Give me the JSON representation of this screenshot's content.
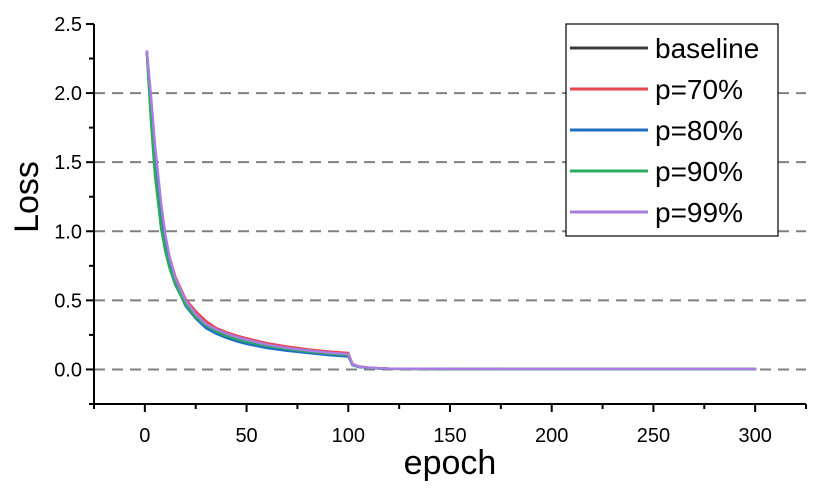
{
  "chart_data": {
    "type": "line",
    "title": "",
    "xlabel": "epoch",
    "ylabel": "Loss",
    "xlim": [
      -25,
      325
    ],
    "ylim": [
      -0.25,
      2.5
    ],
    "xticks": [
      0,
      50,
      100,
      150,
      200,
      250,
      300
    ],
    "yticks": [
      0.0,
      0.5,
      1.0,
      1.5,
      2.0,
      2.5
    ],
    "ytick_labels": [
      "0.0",
      "0.5",
      "1.0",
      "1.5",
      "2.0",
      "2.5"
    ],
    "grid": "horizontal-dashed",
    "legend_position": "top-right",
    "series": [
      {
        "name": "baseline",
        "color": "#3c3c3c",
        "x": [
          1,
          3,
          5,
          8,
          10,
          12,
          15,
          20,
          25,
          30,
          35,
          40,
          45,
          50,
          60,
          70,
          80,
          90,
          99,
          100,
          101,
          102,
          105,
          110,
          115,
          120,
          150,
          200,
          250,
          300
        ],
        "y": [
          2.3,
          1.85,
          1.45,
          1.05,
          0.88,
          0.75,
          0.62,
          0.47,
          0.38,
          0.31,
          0.27,
          0.24,
          0.215,
          0.195,
          0.165,
          0.14,
          0.125,
          0.11,
          0.1,
          0.1,
          0.07,
          0.035,
          0.02,
          0.012,
          0.008,
          0.005,
          0.003,
          0.002,
          0.002,
          0.002
        ]
      },
      {
        "name": "p=70%",
        "color": "#e8434e",
        "x": [
          1,
          3,
          5,
          8,
          10,
          12,
          15,
          20,
          25,
          30,
          35,
          40,
          45,
          50,
          60,
          70,
          80,
          90,
          99,
          100,
          101,
          102,
          105,
          110,
          115,
          120,
          150,
          200,
          250,
          300
        ],
        "y": [
          2.3,
          1.95,
          1.58,
          1.18,
          0.97,
          0.82,
          0.67,
          0.51,
          0.42,
          0.35,
          0.3,
          0.27,
          0.245,
          0.225,
          0.19,
          0.165,
          0.145,
          0.13,
          0.12,
          0.12,
          0.08,
          0.04,
          0.022,
          0.013,
          0.009,
          0.006,
          0.004,
          0.003,
          0.003,
          0.003
        ]
      },
      {
        "name": "p=80%",
        "color": "#1e6fc2",
        "x": [
          1,
          3,
          5,
          8,
          10,
          12,
          15,
          20,
          25,
          30,
          35,
          40,
          45,
          50,
          60,
          70,
          80,
          90,
          99,
          100,
          101,
          102,
          105,
          110,
          115,
          120,
          150,
          200,
          250,
          300
        ],
        "y": [
          2.3,
          1.85,
          1.45,
          1.05,
          0.88,
          0.75,
          0.62,
          0.46,
          0.37,
          0.3,
          0.26,
          0.23,
          0.205,
          0.185,
          0.155,
          0.135,
          0.12,
          0.105,
          0.095,
          0.095,
          0.065,
          0.032,
          0.018,
          0.011,
          0.007,
          0.005,
          0.003,
          0.002,
          0.002,
          0.002
        ]
      },
      {
        "name": "p=90%",
        "color": "#2bab5f",
        "x": [
          1,
          3,
          5,
          8,
          10,
          12,
          15,
          20,
          25,
          30,
          35,
          40,
          45,
          50,
          60,
          70,
          80,
          90,
          99,
          100,
          101,
          102,
          105,
          110,
          115,
          120,
          150,
          200,
          250,
          300
        ],
        "y": [
          2.28,
          1.8,
          1.4,
          1.02,
          0.86,
          0.74,
          0.61,
          0.47,
          0.38,
          0.32,
          0.275,
          0.245,
          0.22,
          0.2,
          0.17,
          0.148,
          0.13,
          0.115,
          0.105,
          0.105,
          0.07,
          0.035,
          0.02,
          0.012,
          0.008,
          0.005,
          0.003,
          0.002,
          0.002,
          0.002
        ]
      },
      {
        "name": "p=99%",
        "color": "#a97ee0",
        "x": [
          1,
          3,
          5,
          8,
          10,
          12,
          15,
          20,
          25,
          30,
          35,
          40,
          45,
          50,
          60,
          70,
          80,
          90,
          99,
          100,
          101,
          102,
          105,
          110,
          115,
          120,
          150,
          200,
          250,
          300
        ],
        "y": [
          2.3,
          1.98,
          1.62,
          1.2,
          0.98,
          0.82,
          0.66,
          0.5,
          0.4,
          0.33,
          0.29,
          0.26,
          0.235,
          0.215,
          0.18,
          0.155,
          0.138,
          0.122,
          0.112,
          0.112,
          0.075,
          0.038,
          0.021,
          0.013,
          0.009,
          0.006,
          0.004,
          0.003,
          0.003,
          0.003
        ]
      }
    ]
  }
}
